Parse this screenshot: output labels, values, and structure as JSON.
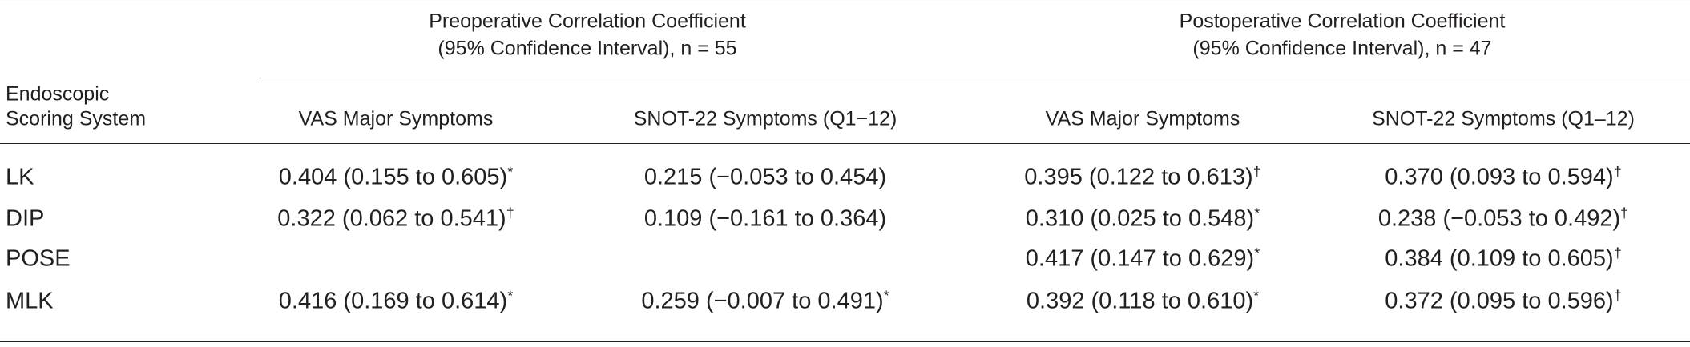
{
  "table": {
    "stub_header": [
      "Endoscopic",
      "Scoring System"
    ],
    "groups": [
      {
        "lines": [
          "Preoperative Correlation Coefficient",
          "(95% Confidence Interval), n = 55"
        ]
      },
      {
        "lines": [
          "Postoperative Correlation Coefficient",
          "(95% Confidence Interval), n = 47"
        ]
      }
    ],
    "columns": [
      "VAS Major Symptoms",
      "SNOT-22 Symptoms (Q1−12)",
      "VAS Major Symptoms",
      "SNOT-22 Symptoms (Q1–12)"
    ],
    "rows": [
      {
        "label": "LK",
        "cells": [
          {
            "text": "0.404 (0.155 to 0.605)",
            "note": "*"
          },
          {
            "text": "0.215 (−0.053 to 0.454)"
          },
          {
            "text": "0.395 (0.122 to 0.613)",
            "note": "†"
          },
          {
            "text": "0.370 (0.093 to 0.594)",
            "note": "†"
          }
        ]
      },
      {
        "label": "DIP",
        "cells": [
          {
            "text": "0.322 (0.062 to 0.541)",
            "note": "†"
          },
          {
            "text": "0.109 (−0.161 to 0.364)"
          },
          {
            "text": "0.310 (0.025 to 0.548)",
            "note": "*"
          },
          {
            "text": "0.238 (−0.053 to 0.492)",
            "note": "†"
          }
        ]
      },
      {
        "label": "POSE",
        "cells": [
          null,
          null,
          {
            "text": "0.417 (0.147 to 0.629)",
            "note": "*"
          },
          {
            "text": "0.384 (0.109 to 0.605)",
            "note": "†"
          }
        ]
      },
      {
        "label": "MLK",
        "cells": [
          {
            "text": "0.416 (0.169 to 0.614)",
            "note": "*"
          },
          {
            "text": "0.259 (−0.007 to 0.491)",
            "note": "*"
          },
          {
            "text": "0.392 (0.118 to 0.610)",
            "note": "*"
          },
          {
            "text": "0.372 (0.095 to 0.596)",
            "note": "†"
          }
        ]
      }
    ]
  }
}
